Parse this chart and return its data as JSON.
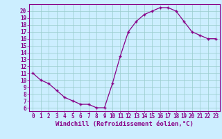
{
  "hours": [
    0,
    1,
    2,
    3,
    4,
    5,
    6,
    7,
    8,
    9,
    10,
    11,
    12,
    13,
    14,
    15,
    16,
    17,
    18,
    19,
    20,
    21,
    22,
    23
  ],
  "values": [
    11,
    10,
    9.5,
    8.5,
    7.5,
    7,
    6.5,
    6.5,
    6,
    6,
    9.5,
    13.5,
    17,
    18.5,
    19.5,
    20,
    20.5,
    20.5,
    20,
    18.5,
    17,
    16.5,
    16,
    16
  ],
  "line_color": "#880088",
  "marker": "+",
  "bg_color": "#cceeff",
  "grid_color": "#99cccc",
  "xlabel": "Windchill (Refroidissement éolien,°C)",
  "xlabel_color": "#880088",
  "ylim": [
    5.5,
    21
  ],
  "yticks": [
    6,
    7,
    8,
    9,
    10,
    11,
    12,
    13,
    14,
    15,
    16,
    17,
    18,
    19,
    20
  ],
  "xlim": [
    -0.5,
    23.5
  ],
  "tick_color": "#880088",
  "axis_color": "#880088",
  "tick_fontsize": 5.5,
  "xlabel_fontsize": 6.5,
  "linewidth": 0.9,
  "markersize": 3.5,
  "markeredgewidth": 1.0
}
